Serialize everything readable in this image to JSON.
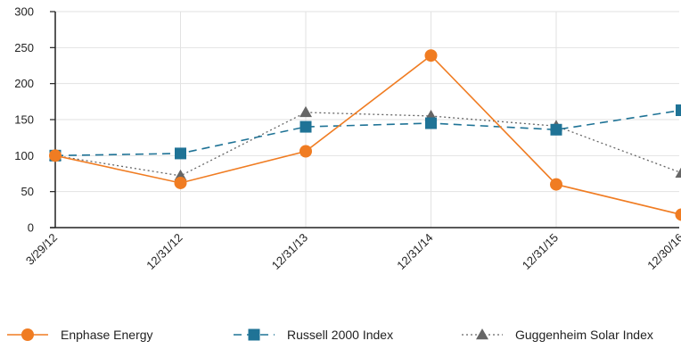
{
  "chart_data": {
    "type": "line",
    "title": "",
    "xlabel": "",
    "ylabel": "",
    "categories": [
      "3/29/12",
      "12/31/12",
      "12/31/13",
      "12/31/14",
      "12/31/15",
      "12/30/16"
    ],
    "ylim": [
      0,
      300
    ],
    "yticks": [
      0,
      50,
      100,
      150,
      200,
      250,
      300
    ],
    "grid": true,
    "legend_position": "bottom",
    "series": [
      {
        "name": "Enphase Energy",
        "values": [
          100,
          62,
          106,
          239,
          60,
          18
        ],
        "color": "#f07c22",
        "marker": "circle",
        "line_style": "solid"
      },
      {
        "name": "Russell 2000 Index",
        "values": [
          100,
          103,
          140,
          145,
          136,
          163
        ],
        "color": "#1f7396",
        "marker": "square",
        "line_style": "dashed"
      },
      {
        "name": "Guggenheim Solar Index",
        "values": [
          100,
          72,
          160,
          155,
          141,
          76
        ],
        "color": "#666666",
        "marker": "triangle",
        "line_style": "dotted"
      }
    ]
  }
}
